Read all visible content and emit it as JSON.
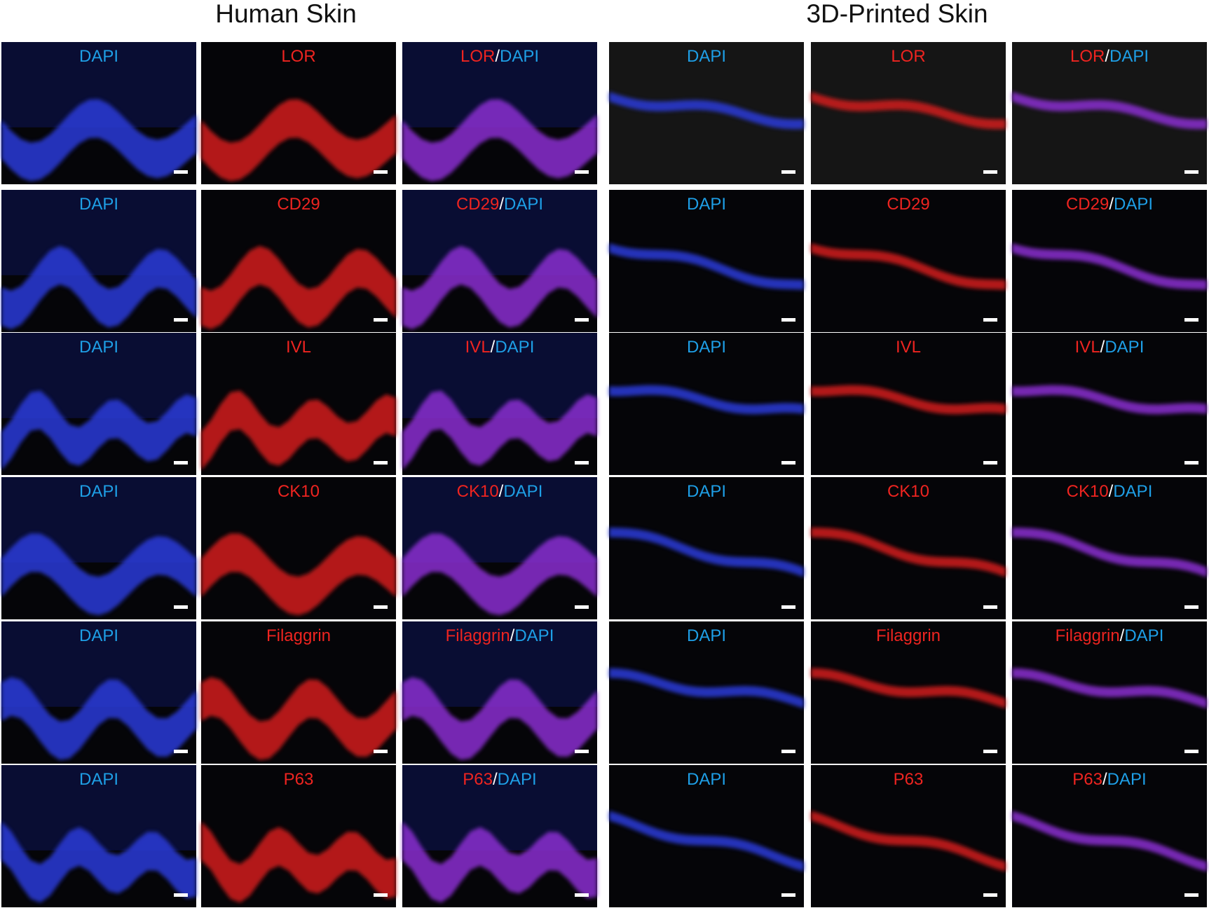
{
  "groups": [
    {
      "title": "Human Skin",
      "rows": [
        {
          "dapi": "DAPI",
          "marker": "LOR",
          "merge": {
            "marker": "LOR",
            "sep": "/",
            "dapi": "DAPI"
          }
        },
        {
          "dapi": "DAPI",
          "marker": "CD29",
          "merge": {
            "marker": "CD29",
            "sep": "/",
            "dapi": "DAPI"
          }
        },
        {
          "dapi": "DAPI",
          "marker": "IVL",
          "merge": {
            "marker": "IVL",
            "sep": "/",
            "dapi": "DAPI"
          }
        },
        {
          "dapi": "DAPI",
          "marker": "CK10",
          "merge": {
            "marker": "CK10",
            "sep": "/",
            "dapi": "DAPI"
          }
        },
        {
          "dapi": "DAPI",
          "marker": "Filaggrin",
          "merge": {
            "marker": "Filaggrin",
            "sep": "/",
            "dapi": "DAPI"
          }
        },
        {
          "dapi": "DAPI",
          "marker": "P63",
          "merge": {
            "marker": "P63",
            "sep": "/",
            "dapi": "DAPI"
          }
        }
      ]
    },
    {
      "title": "3D-Printed Skin",
      "rows": [
        {
          "dapi": "DAPI",
          "marker": "LOR",
          "merge": {
            "marker": "LOR",
            "sep": "/",
            "dapi": "DAPI"
          }
        },
        {
          "dapi": "DAPI",
          "marker": "CD29",
          "merge": {
            "marker": "CD29",
            "sep": "/",
            "dapi": "DAPI"
          }
        },
        {
          "dapi": "DAPI",
          "marker": "IVL",
          "merge": {
            "marker": "IVL",
            "sep": "/",
            "dapi": "DAPI"
          }
        },
        {
          "dapi": "DAPI",
          "marker": "CK10",
          "merge": {
            "marker": "CK10",
            "sep": "/",
            "dapi": "DAPI"
          }
        },
        {
          "dapi": "DAPI",
          "marker": "Filaggrin",
          "merge": {
            "marker": "Filaggrin",
            "sep": "/",
            "dapi": "DAPI"
          }
        },
        {
          "dapi": "DAPI",
          "marker": "P63",
          "merge": {
            "marker": "P63",
            "sep": "/",
            "dapi": "DAPI"
          }
        }
      ]
    }
  ]
}
